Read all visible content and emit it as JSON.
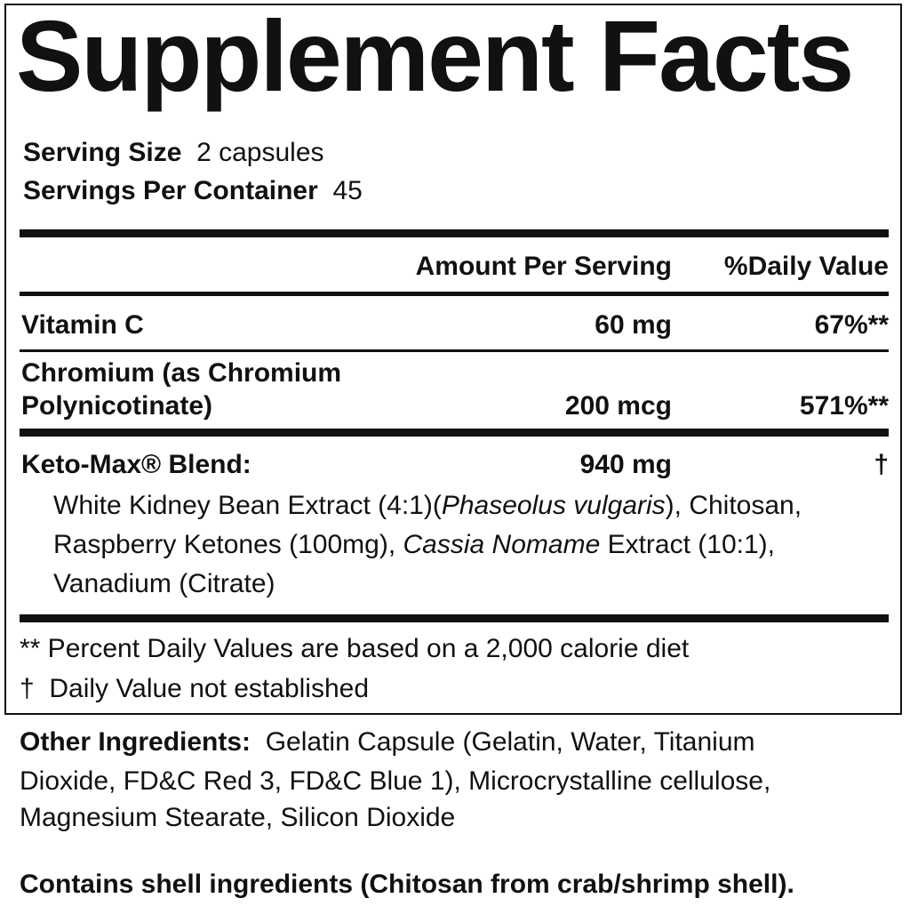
{
  "title": "Supplement Facts",
  "serving": {
    "size_label": "Serving Size",
    "size_value": "2 capsules",
    "per_container_label": "Servings Per Container",
    "per_container_value": "45"
  },
  "columns": {
    "amount": "Amount Per Serving",
    "dv": "%Daily Value"
  },
  "rows": [
    {
      "name": "Vitamin C",
      "amount": "60 mg",
      "dv": "67%**"
    },
    {
      "name_line1": "Chromium (as Chromium",
      "name_line2": "Polynicotinate)",
      "amount": "200 mcg",
      "dv": "571%**"
    },
    {
      "name": "Keto-Max® Blend:",
      "amount": "940 mg",
      "dv": "†"
    }
  ],
  "blend": {
    "p1": "White Kidney Bean Extract (4:1)(",
    "p1_italic": "Phaseolus vulgaris",
    "p1_end": "), Chitosan,",
    "p2": "Raspberry Ketones (100mg), ",
    "p2_italic": "Cassia Nomame",
    "p2_end": " Extract (10:1),",
    "p3": "Vanadium (Citrate)"
  },
  "footnotes": [
    "** Percent Daily Values are based on a 2,000 calorie diet",
    "†  Daily Value not established"
  ],
  "other": {
    "label": "Other Ingredients:",
    "line1": "Gelatin Capsule (Gelatin, Water, Titanium",
    "line2": "Dioxide, FD&C Red 3, FD&C Blue 1), Microcrystalline cellulose,",
    "line3": "Magnesium Stearate, Silicon Dioxide"
  },
  "allergen": "Contains shell ingredients (Chitosan from crab/shrimp shell)."
}
